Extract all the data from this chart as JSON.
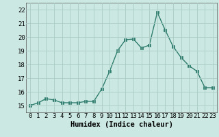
{
  "x": [
    0,
    1,
    2,
    3,
    4,
    5,
    6,
    7,
    8,
    9,
    10,
    11,
    12,
    13,
    14,
    15,
    16,
    17,
    18,
    19,
    20,
    21,
    22,
    23
  ],
  "y": [
    15.0,
    15.2,
    15.5,
    15.4,
    15.2,
    15.2,
    15.2,
    15.3,
    15.3,
    16.2,
    17.5,
    19.0,
    19.8,
    19.85,
    19.2,
    19.4,
    21.8,
    20.5,
    19.3,
    18.5,
    17.9,
    17.5,
    16.3,
    16.3
  ],
  "line_color": "#2e7d6e",
  "marker": "s",
  "markersize": 2.5,
  "linewidth": 1.0,
  "background_color": "#cce8e2",
  "grid_color": "#aaccC5",
  "xlabel": "Humidex (Indice chaleur)",
  "tick_fontsize": 6.5,
  "xlabel_fontsize": 7.5,
  "ylim": [
    14.5,
    22.5
  ],
  "xlim": [
    -0.5,
    23.5
  ],
  "yticks": [
    15,
    16,
    17,
    18,
    19,
    20,
    21,
    22
  ],
  "xticks": [
    0,
    1,
    2,
    3,
    4,
    5,
    6,
    7,
    8,
    9,
    10,
    11,
    12,
    13,
    14,
    15,
    16,
    17,
    18,
    19,
    20,
    21,
    22,
    23
  ]
}
